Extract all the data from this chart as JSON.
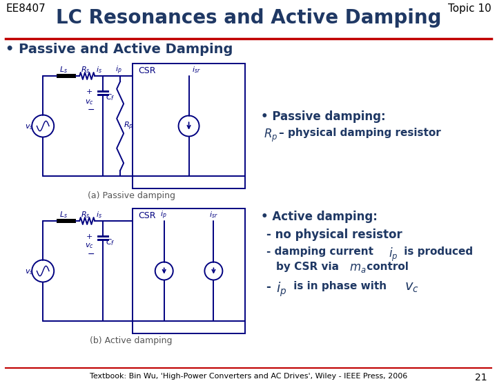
{
  "bg_color": "#ffffff",
  "header_left": "EE8407",
  "header_right": "Topic 10",
  "title": "LC Resonances and Active Damping",
  "title_color": "#1f3864",
  "header_color": "#000000",
  "bullet_heading": "• Passive and Active Damping",
  "bullet_heading_color": "#1f3864",
  "red_line_color": "#c00000",
  "text_color": "#1f3864",
  "footer_text": "Textbook: Bin Wu, 'High-Power Converters and AC Drives', Wiley - IEEE Press, 2006",
  "footer_color": "#000000",
  "page_number": "21",
  "circuit_color": "#000080",
  "diagram_a_label": "(a) Passive damping",
  "diagram_b_label": "(b) Active damping"
}
